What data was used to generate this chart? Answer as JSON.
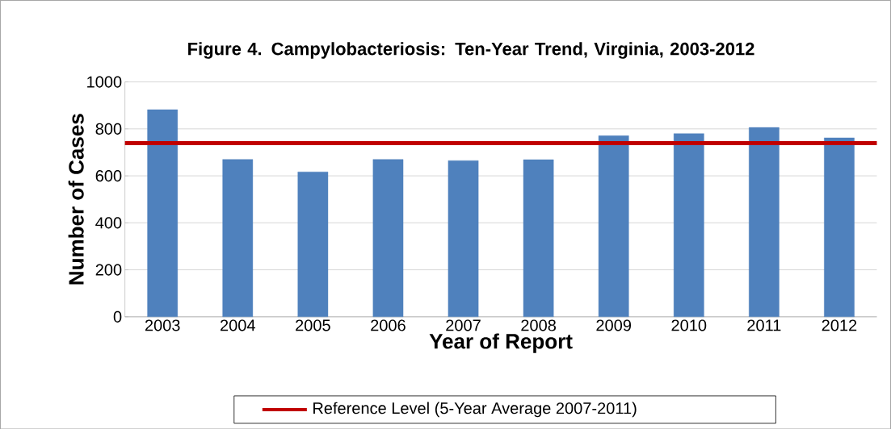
{
  "chart_data": {
    "type": "bar",
    "title": "Figure 4. Campylobacteriosis:  Ten-Year Trend, Virginia, 2003-2012",
    "xlabel": "Year of Report",
    "ylabel": "Number of Cases",
    "categories": [
      "2003",
      "2004",
      "2005",
      "2006",
      "2007",
      "2008",
      "2009",
      "2010",
      "2011",
      "2012"
    ],
    "values": [
      882,
      670,
      617,
      670,
      665,
      669,
      771,
      780,
      806,
      762
    ],
    "color": "#4f81bd",
    "ylim": [
      0,
      1000
    ],
    "yticks": [
      0,
      200,
      400,
      600,
      800,
      1000
    ],
    "grid": "y",
    "ref_lines": [
      {
        "axis": "y",
        "value": 739,
        "label": "Reference Level (5-Year Average 2007-2011)",
        "color": "#c00000"
      }
    ],
    "legend": "bottom"
  }
}
